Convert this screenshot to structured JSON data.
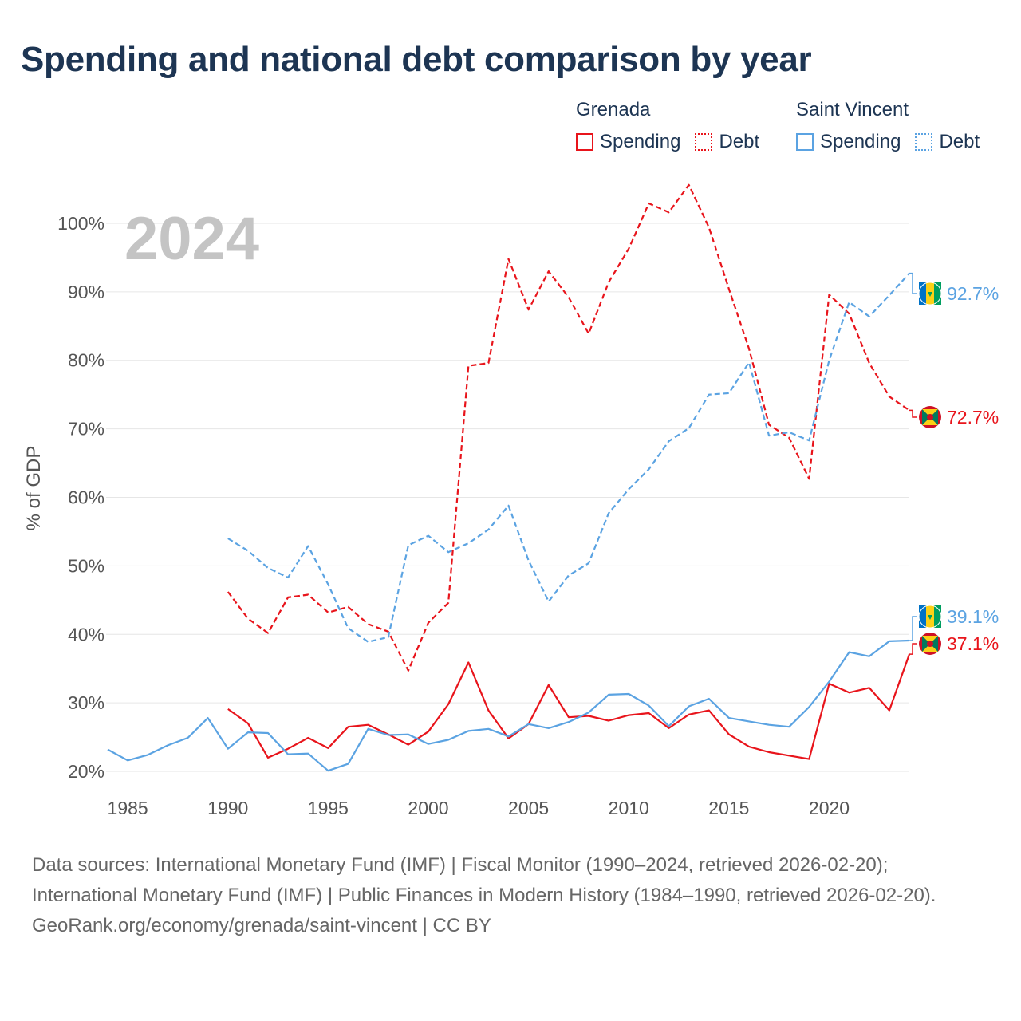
{
  "title": "Spending and national debt comparison by year",
  "legend": {
    "groups": [
      {
        "name": "Grenada",
        "items": [
          "Spending",
          "Debt"
        ]
      },
      {
        "name": "Saint Vincent",
        "items": [
          "Spending",
          "Debt"
        ]
      }
    ]
  },
  "colors": {
    "grenada": "#e8141b",
    "saint_vincent": "#5ba3e2",
    "title": "#1d3553",
    "grid": "#e6e6e6",
    "year_watermark": "#c4c4c4"
  },
  "footer": {
    "sources": "Data sources: International Monetary Fund (IMF) | Fiscal Monitor (1990–2024, retrieved 2026-02-20); International Monetary Fund (IMF) | Public Finances in Modern History (1984–1990, retrieved 2026-02-20).",
    "credit": "GeoRank.org/economy/grenada/saint-vincent | CC BY"
  },
  "chart_data": {
    "type": "line",
    "year_label": "2024",
    "ylabel": "% of GDP",
    "xlim": [
      1984,
      2024
    ],
    "ylim": [
      15,
      105
    ],
    "x_ticks": [
      1985,
      1990,
      1995,
      2000,
      2005,
      2010,
      2015,
      2020
    ],
    "y_ticks": [
      20,
      30,
      40,
      50,
      60,
      70,
      80,
      90,
      100
    ],
    "y_tick_labels": [
      "20%",
      "30%",
      "40%",
      "50%",
      "60%",
      "70%",
      "80%",
      "90%",
      "100%"
    ],
    "series": [
      {
        "name": "Grenada Debt",
        "country": "Grenada",
        "metric": "Debt",
        "color": "#e8141b",
        "dash": true,
        "start_year": 1990,
        "values": [
          46.2,
          42.3,
          40.2,
          45.4,
          45.8,
          43.2,
          44.0,
          41.5,
          40.4,
          34.7,
          41.7,
          44.6,
          79.2,
          79.6,
          94.8,
          87.4,
          93.0,
          89.2,
          83.9,
          91.4,
          96.3,
          102.9,
          101.6,
          105.6,
          99.4,
          90.4,
          81.7,
          70.6,
          68.7,
          62.7,
          89.6,
          86.8,
          79.6,
          74.7,
          72.7
        ],
        "label": "72.7%"
      },
      {
        "name": "Saint Vincent Debt",
        "country": "Saint Vincent",
        "metric": "Debt",
        "color": "#5ba3e2",
        "dash": true,
        "start_year": 1990,
        "values": [
          54.0,
          52.2,
          49.7,
          48.3,
          52.9,
          47.3,
          40.9,
          38.9,
          39.6,
          53.0,
          54.4,
          52.0,
          53.3,
          55.3,
          58.8,
          50.8,
          44.8,
          48.6,
          50.4,
          57.7,
          61.2,
          64.1,
          68.2,
          70.1,
          75.0,
          75.2,
          79.7,
          69.0,
          69.5,
          68.3,
          80.0,
          88.5,
          86.4,
          89.5,
          92.7
        ],
        "label": "92.7%"
      },
      {
        "name": "Grenada Spending",
        "country": "Grenada",
        "metric": "Spending",
        "color": "#e8141b",
        "dash": false,
        "start_year": 1990,
        "values": [
          29.1,
          27.0,
          22.0,
          23.3,
          24.9,
          23.4,
          26.5,
          26.8,
          25.4,
          23.9,
          25.8,
          29.8,
          35.9,
          28.9,
          24.8,
          26.9,
          32.6,
          27.9,
          28.1,
          27.4,
          28.2,
          28.5,
          26.3,
          28.3,
          28.9,
          25.4,
          23.6,
          22.8,
          22.3,
          21.8,
          32.8,
          31.5,
          32.2,
          28.9,
          37.1
        ],
        "label": "37.1%"
      },
      {
        "name": "Saint Vincent Spending",
        "country": "Saint Vincent",
        "metric": "Spending",
        "color": "#5ba3e2",
        "dash": false,
        "start_year": 1984,
        "values": [
          23.2,
          21.6,
          22.4,
          23.8,
          24.9,
          27.8,
          23.3,
          25.7,
          25.6,
          22.5,
          22.6,
          20.1,
          21.1,
          26.2,
          25.3,
          25.4,
          24.0,
          24.6,
          25.9,
          26.2,
          25.1,
          26.9,
          26.3,
          27.2,
          28.6,
          31.2,
          31.3,
          29.6,
          26.6,
          29.5,
          30.6,
          27.8,
          27.3,
          26.8,
          26.5,
          29.4,
          33.1,
          37.4,
          36.8,
          39.0,
          39.1
        ],
        "label": "39.1%"
      }
    ]
  }
}
